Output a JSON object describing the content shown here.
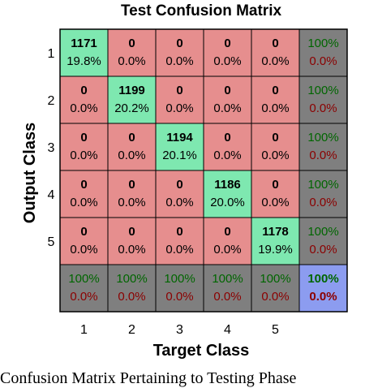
{
  "chart_data": {
    "type": "heatmap",
    "title": "Test Confusion Matrix",
    "xlabel": "Target Class",
    "ylabel": "Output Class",
    "x_tick_labels": [
      "1",
      "2",
      "3",
      "4",
      "5"
    ],
    "y_tick_labels": [
      "1",
      "2",
      "3",
      "4",
      "5"
    ],
    "matrix": [
      [
        {
          "count": "1171",
          "percent": "19.8%"
        },
        {
          "count": "0",
          "percent": "0.0%"
        },
        {
          "count": "0",
          "percent": "0.0%"
        },
        {
          "count": "0",
          "percent": "0.0%"
        },
        {
          "count": "0",
          "percent": "0.0%"
        }
      ],
      [
        {
          "count": "0",
          "percent": "0.0%"
        },
        {
          "count": "1199",
          "percent": "20.2%"
        },
        {
          "count": "0",
          "percent": "0.0%"
        },
        {
          "count": "0",
          "percent": "0.0%"
        },
        {
          "count": "0",
          "percent": "0.0%"
        }
      ],
      [
        {
          "count": "0",
          "percent": "0.0%"
        },
        {
          "count": "0",
          "percent": "0.0%"
        },
        {
          "count": "1194",
          "percent": "20.1%"
        },
        {
          "count": "0",
          "percent": "0.0%"
        },
        {
          "count": "0",
          "percent": "0.0%"
        }
      ],
      [
        {
          "count": "0",
          "percent": "0.0%"
        },
        {
          "count": "0",
          "percent": "0.0%"
        },
        {
          "count": "0",
          "percent": "0.0%"
        },
        {
          "count": "1186",
          "percent": "20.0%"
        },
        {
          "count": "0",
          "percent": "0.0%"
        }
      ],
      [
        {
          "count": "0",
          "percent": "0.0%"
        },
        {
          "count": "0",
          "percent": "0.0%"
        },
        {
          "count": "0",
          "percent": "0.0%"
        },
        {
          "count": "0",
          "percent": "0.0%"
        },
        {
          "count": "1178",
          "percent": "19.9%"
        }
      ]
    ],
    "row_summary": [
      {
        "correct": "100%",
        "incorrect": "0.0%"
      },
      {
        "correct": "100%",
        "incorrect": "0.0%"
      },
      {
        "correct": "100%",
        "incorrect": "0.0%"
      },
      {
        "correct": "100%",
        "incorrect": "0.0%"
      },
      {
        "correct": "100%",
        "incorrect": "0.0%"
      }
    ],
    "column_summary": [
      {
        "correct": "100%",
        "incorrect": "0.0%"
      },
      {
        "correct": "100%",
        "incorrect": "0.0%"
      },
      {
        "correct": "100%",
        "incorrect": "0.0%"
      },
      {
        "correct": "100%",
        "incorrect": "0.0%"
      },
      {
        "correct": "100%",
        "incorrect": "0.0%"
      }
    ],
    "overall": {
      "correct": "100%",
      "incorrect": "0.0%"
    },
    "colors": {
      "correct_cell": "#7ee8b0",
      "incorrect_cell": "#e68e8e",
      "summary_cell": "#7f7f7f",
      "overall_cell": "#8c9cf0",
      "correct_text": "#006600",
      "incorrect_text": "#8b0000",
      "overall_correct_text": "#006600",
      "overall_incorrect_text": "#8b0000",
      "grid_line": "#000000"
    }
  },
  "caption": "Confusion Matrix Pertaining to Testing Phase"
}
